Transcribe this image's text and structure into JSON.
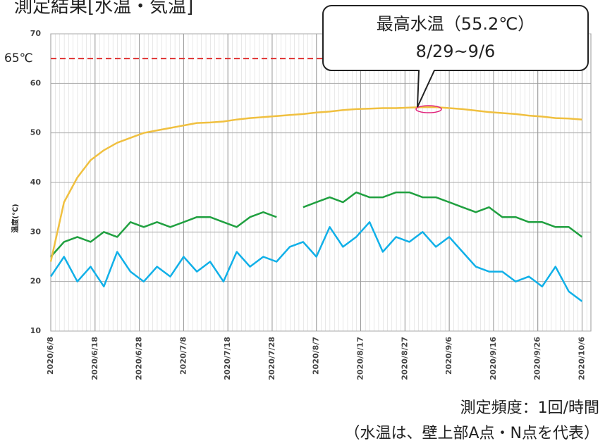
{
  "chart_data": {
    "type": "line",
    "title": "測定結果[水温・気温]",
    "ylabel": "温度(℃)",
    "x": [
      "2020/6/8",
      "2020/6/11",
      "2020/6/14",
      "2020/6/17",
      "2020/6/20",
      "2020/6/23",
      "2020/6/26",
      "2020/6/29",
      "2020/7/2",
      "2020/7/5",
      "2020/7/8",
      "2020/7/11",
      "2020/7/14",
      "2020/7/17",
      "2020/7/20",
      "2020/7/23",
      "2020/7/26",
      "2020/7/29",
      "2020/8/1",
      "2020/8/4",
      "2020/8/7",
      "2020/8/10",
      "2020/8/13",
      "2020/8/16",
      "2020/8/19",
      "2020/8/22",
      "2020/8/25",
      "2020/8/28",
      "2020/8/31",
      "2020/9/3",
      "2020/9/6",
      "2020/9/9",
      "2020/9/12",
      "2020/9/15",
      "2020/9/18",
      "2020/9/21",
      "2020/9/24",
      "2020/9/27",
      "2020/9/30",
      "2020/10/3",
      "2020/10/6"
    ],
    "series": [
      {
        "color": "#f0c040",
        "values": [
          24,
          36,
          41,
          44.5,
          46.5,
          48,
          49,
          50,
          50.5,
          51,
          51.5,
          52,
          52.1,
          52.3,
          52.7,
          53,
          53.2,
          53.4,
          53.6,
          53.8,
          54.1,
          54.3,
          54.6,
          54.8,
          54.9,
          55,
          55,
          55.1,
          55.2,
          55.2,
          55,
          54.8,
          54.5,
          54.2,
          54,
          53.8,
          53.5,
          53.3,
          53,
          52.9,
          52.7
        ]
      },
      {
        "color": "#20a040",
        "values": [
          25,
          28,
          29,
          28,
          30,
          29,
          32,
          31,
          32,
          31,
          32,
          33,
          33,
          32,
          31,
          33,
          34,
          33,
          null,
          35,
          36,
          37,
          36,
          38,
          37,
          37,
          38,
          38,
          37,
          37,
          36,
          35,
          34,
          35,
          33,
          33,
          32,
          32,
          31,
          31,
          29
        ]
      },
      {
        "color": "#10b0e8",
        "values": [
          21,
          25,
          20,
          23,
          19,
          26,
          22,
          20,
          23,
          21,
          25,
          22,
          24,
          20,
          26,
          23,
          25,
          24,
          27,
          28,
          25,
          31,
          27,
          29,
          32,
          26,
          29,
          28,
          30,
          27,
          29,
          26,
          23,
          22,
          22,
          20,
          21,
          19,
          23,
          18,
          16
        ]
      }
    ],
    "xlim": [
      "2020/6/8",
      "2020/10/8"
    ],
    "xticks": [
      "2020/6/8",
      "2020/6/18",
      "2020/6/28",
      "2020/7/8",
      "2020/7/18",
      "2020/7/28",
      "2020/8/7",
      "2020/8/17",
      "2020/8/27",
      "2020/9/6",
      "2020/9/16",
      "2020/9/26",
      "2020/10/6"
    ],
    "ylim": [
      10,
      70
    ],
    "yticks": [
      10,
      20,
      30,
      40,
      50,
      60,
      70
    ],
    "grid": true,
    "reference_line": {
      "value": 65,
      "label": "65℃",
      "color": "#e03030"
    },
    "annotation": [
      "最高水温（55.2℃）",
      "8/29~9/6"
    ],
    "notes": [
      "測定頻度：1回/時間",
      "（水温は、壁上部A点・N点を代表）"
    ]
  }
}
